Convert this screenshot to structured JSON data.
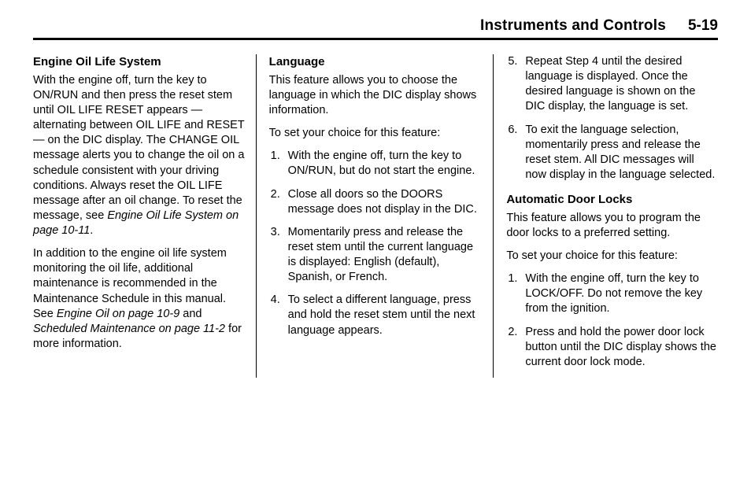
{
  "header": {
    "title": "Instruments and Controls",
    "pagenum": "5-19"
  },
  "col1": {
    "h1": "Engine Oil Life System",
    "p1a": "With the engine off, turn the key to ON/RUN and then press the reset stem until OIL LIFE RESET appears — alternating between OIL LIFE and RESET — on the DIC display. The CHANGE OIL message alerts you to change the oil on a schedule consistent with your driving conditions. Always reset the OIL LIFE message after an oil change. To reset the message, see ",
    "p1b_ital": "Engine Oil Life System on page 10‑11",
    "p1c": ".",
    "p2a": "In addition to the engine oil life system monitoring the oil life, additional maintenance is recommended in the Maintenance Schedule in this manual. See ",
    "p2b_ital": "Engine Oil on page 10‑9",
    "p2c": " and ",
    "p2d_ital": "Scheduled Maintenance on page 11‑2",
    "p2e": " for more information."
  },
  "col2": {
    "h1": "Language",
    "p1": "This feature allows you to choose the language in which the DIC display shows information.",
    "p2": "To set your choice for this feature:",
    "li1": "With the engine off, turn the key to ON/RUN, but do not start the engine.",
    "li2": "Close all doors so the DOORS message does not display in the DIC.",
    "li3": "Momentarily press and release the reset stem until the current language is displayed: English (default), Spanish, or French.",
    "li4": "To select a different language, press and hold the reset stem until the next language appears."
  },
  "col3": {
    "li5": "Repeat Step 4 until the desired language is displayed. Once the desired language is shown on the DIC display, the language is set.",
    "li6": "To exit the language selection, momentarily press and release the reset stem. All DIC messages will now display in the language selected.",
    "h2": "Automatic Door Locks",
    "p1": "This feature allows you to program the door locks to a preferred setting.",
    "p2": "To set your choice for this feature:",
    "li1b": "With the engine off, turn the key to LOCK/OFF. Do not remove the key from the ignition.",
    "li2b": "Press and hold the power door lock button until the DIC display shows the current door lock mode."
  }
}
